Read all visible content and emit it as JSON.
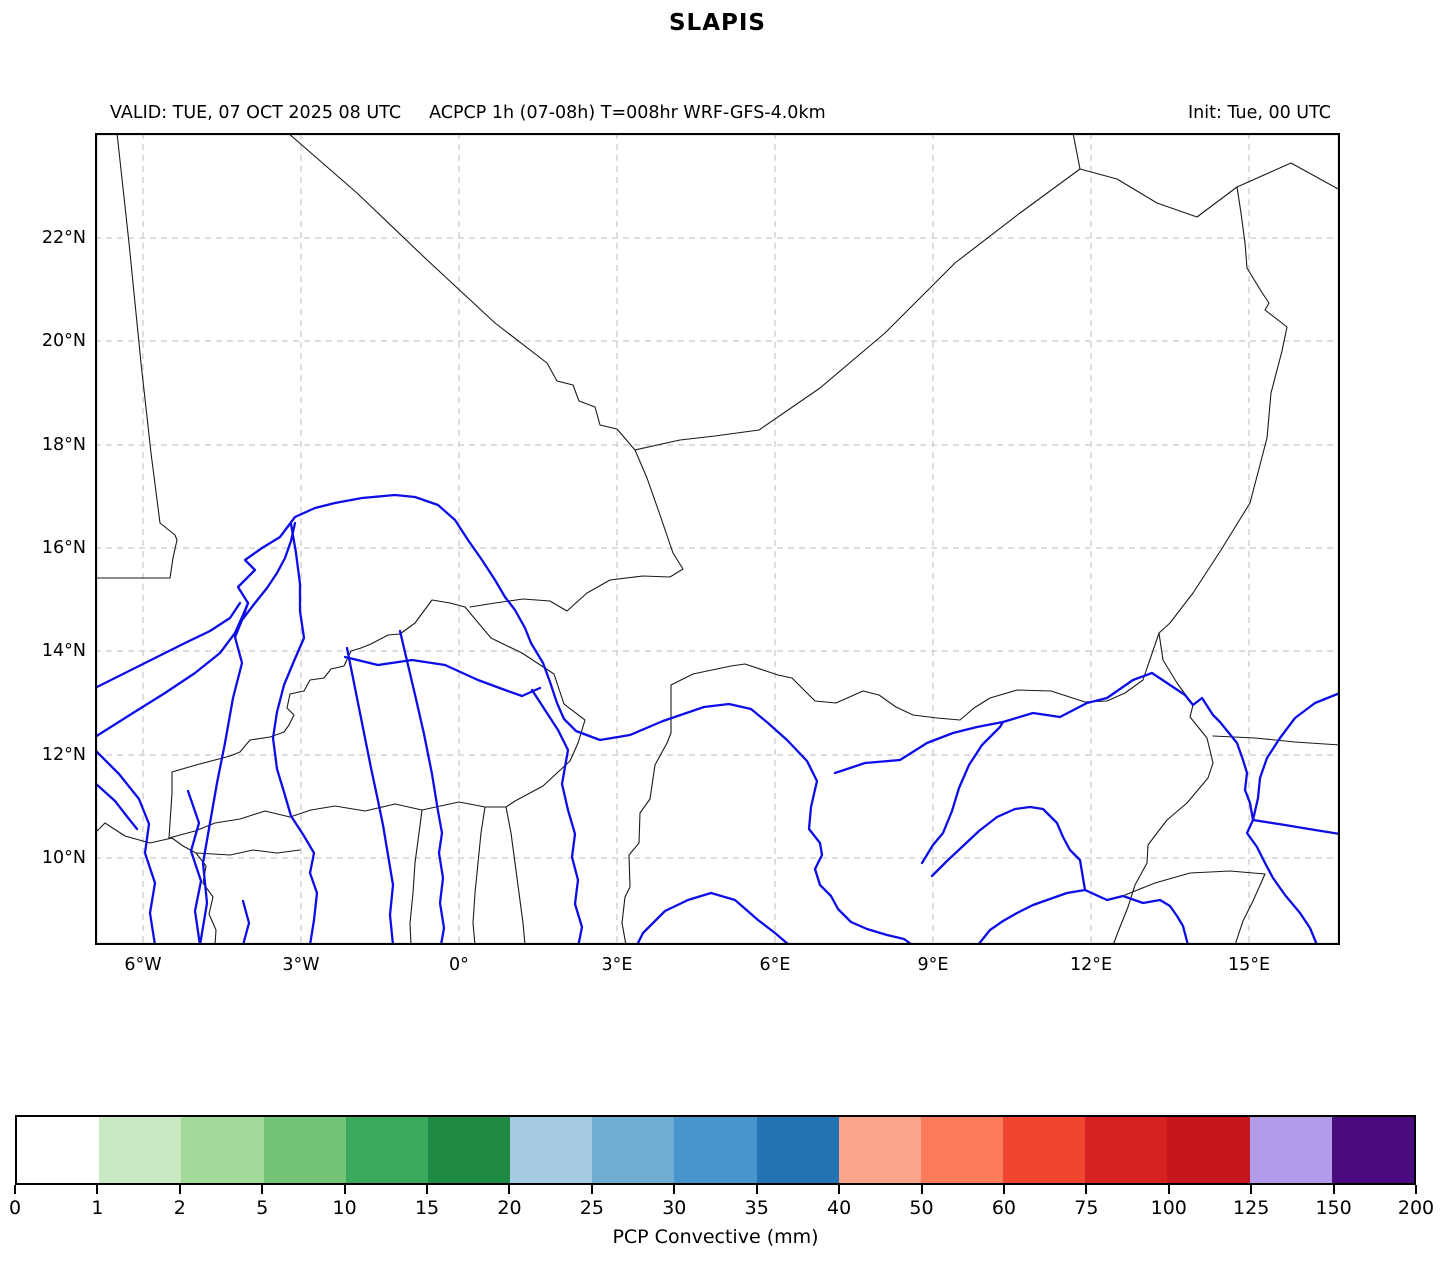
{
  "title": "SLAPIS",
  "header": {
    "valid": "VALID: TUE, 07 OCT 2025 08 UTC",
    "product": "ACPCP 1h (07-08h) T=008hr WRF-GFS-4.0km",
    "init": "Init: Tue, 00 UTC"
  },
  "map": {
    "lat_labels": [
      "22°N",
      "20°N",
      "18°N",
      "16°N",
      "14°N",
      "12°N",
      "10°N"
    ],
    "lon_labels": [
      "6°W",
      "3°W",
      "0°",
      "3°E",
      "6°E",
      "9°E",
      "12°E",
      "15°E"
    ],
    "features": {
      "rivers_color": "#0d0de8",
      "borders_color": "#1a1a1a",
      "grid_color": "#c9c9c9"
    }
  },
  "chart_data": {
    "type": "heatmap",
    "title": "SLAPIS",
    "subtitle": "ACPCP 1h (07-08h) T=008hr WRF-GFS-4.0km",
    "valid_time": "TUE, 07 OCT 2025 08 UTC",
    "init_time": "Tue, 00 UTC",
    "xlabel_ticks": [
      "6°W",
      "3°W",
      "0°",
      "3°E",
      "6°E",
      "9°E",
      "12°E",
      "15°E"
    ],
    "ylabel_ticks": [
      "22°N",
      "20°N",
      "18°N",
      "16°N",
      "14°N",
      "12°N",
      "10°N"
    ],
    "colorbar_label": "PCP Convective (mm)",
    "colorbar_levels": [
      0,
      1,
      2,
      5,
      10,
      15,
      20,
      25,
      30,
      35,
      40,
      50,
      60,
      75,
      100,
      125,
      150,
      200
    ],
    "note": "No precipitation shading visible inside map area (all values below 1 mm)"
  },
  "colorbar": {
    "label": "PCP Convective (mm)",
    "ticks": [
      "0",
      "1",
      "2",
      "5",
      "10",
      "15",
      "20",
      "25",
      "30",
      "35",
      "40",
      "50",
      "60",
      "75",
      "100",
      "125",
      "150",
      "200"
    ],
    "colors": [
      "#ffffff",
      "#c8e9c1",
      "#a3d99b",
      "#73c476",
      "#3ba95c",
      "#1f8a44",
      "#a5cbe2",
      "#70add3",
      "#4795ca",
      "#2272b4",
      "#fca58c",
      "#fb7b5b",
      "#f0452f",
      "#d52221",
      "#c4161c",
      "#b29be8",
      "#4a0a7f"
    ]
  }
}
